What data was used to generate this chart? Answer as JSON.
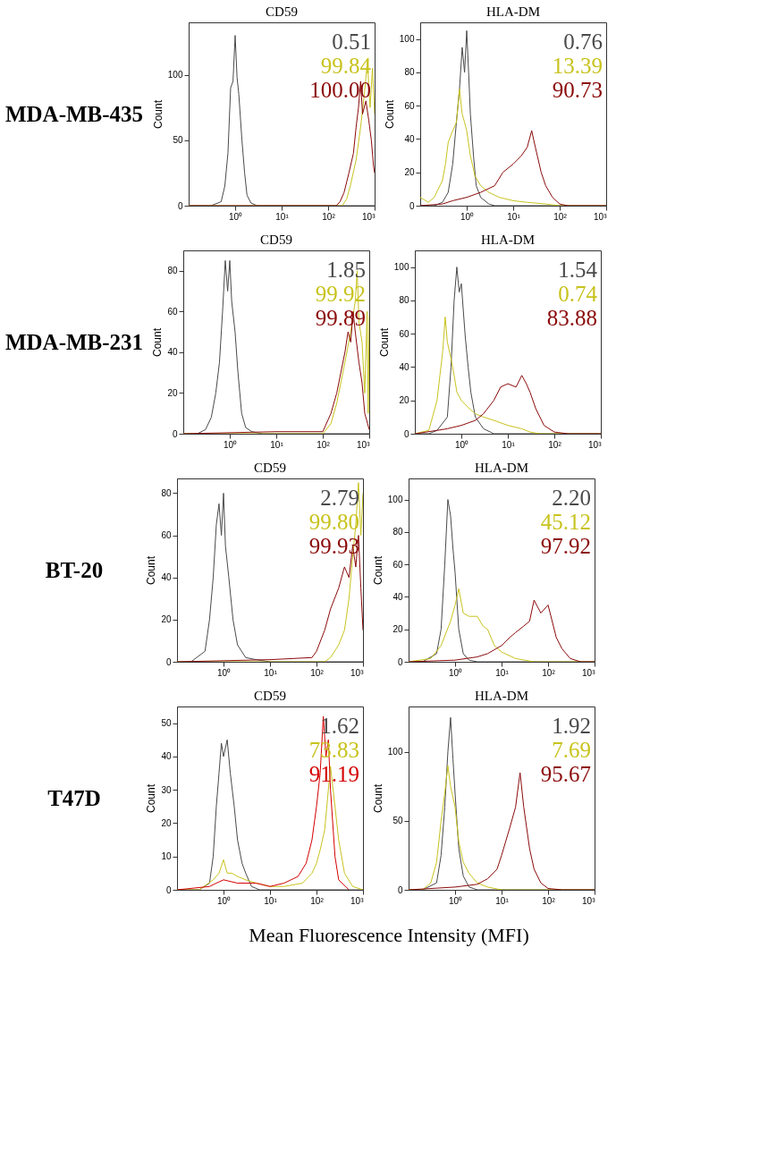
{
  "chart_data": [
    {
      "type": "line",
      "title": "CD59",
      "ylabel": "Count",
      "log": "x",
      "grid": false,
      "legend": "top right",
      "annotations": [
        "MDA-MB-435"
      ],
      "xlim": [
        0.1,
        1000
      ],
      "xticks": [
        {
          "value": 1,
          "label": "10⁰"
        },
        {
          "value": 10,
          "label": "10¹"
        },
        {
          "value": 100,
          "label": "10²"
        },
        {
          "value": 1000,
          "label": "10³"
        }
      ],
      "ylim": [
        0,
        140
      ],
      "yticks": [
        0,
        50,
        100
      ],
      "series": [
        {
          "name": "0.51",
          "color": "#4a4a4a",
          "x": [
            0.1,
            0.3,
            0.5,
            0.6,
            0.7,
            0.8,
            0.9,
            1.0,
            1.1,
            1.2,
            1.4,
            1.6,
            1.8,
            2.2,
            3,
            1000
          ],
          "values": [
            0,
            0,
            3,
            15,
            40,
            90,
            95,
            130,
            98,
            85,
            50,
            25,
            8,
            2,
            0,
            0
          ]
        },
        {
          "name": "99.84",
          "color": "#c8c31e",
          "x": [
            0.1,
            100,
            200,
            250,
            300,
            400,
            500,
            600,
            700,
            800,
            900,
            1000
          ],
          "values": [
            0,
            0,
            0,
            5,
            15,
            35,
            60,
            85,
            110,
            75,
            105,
            70
          ]
        },
        {
          "name": "100.00",
          "color": "#8b0a0a",
          "x": [
            0.1,
            150,
            180,
            220,
            280,
            350,
            400,
            450,
            500,
            550,
            650,
            750,
            850,
            950,
            1000
          ],
          "values": [
            0,
            0,
            3,
            10,
            25,
            40,
            60,
            75,
            95,
            70,
            80,
            65,
            50,
            30,
            25
          ]
        }
      ]
    },
    {
      "type": "line",
      "title": "HLA-DM",
      "ylabel": "Count",
      "log": "x",
      "grid": false,
      "legend": "top right",
      "xlim": [
        0.1,
        1000
      ],
      "xticks": [
        {
          "value": 1,
          "label": "10⁰"
        },
        {
          "value": 10,
          "label": "10¹"
        },
        {
          "value": 100,
          "label": "10²"
        },
        {
          "value": 1000,
          "label": "10³"
        }
      ],
      "ylim": [
        0,
        110
      ],
      "yticks": [
        0,
        20,
        40,
        60,
        80,
        100
      ],
      "series": [
        {
          "name": "0.76",
          "color": "#4a4a4a",
          "x": [
            0.1,
            0.2,
            0.3,
            0.4,
            0.5,
            0.6,
            0.7,
            0.8,
            0.9,
            1.0,
            1.1,
            1.2,
            1.4,
            1.6,
            2,
            3,
            4,
            1000
          ],
          "values": [
            0,
            0,
            2,
            8,
            25,
            50,
            70,
            95,
            80,
            105,
            80,
            55,
            30,
            12,
            5,
            1,
            0,
            0
          ]
        },
        {
          "name": "13.39",
          "color": "#c8c31e",
          "x": [
            0.1,
            0.15,
            0.2,
            0.3,
            0.35,
            0.4,
            0.5,
            0.6,
            0.7,
            0.8,
            0.9,
            1.0,
            1.2,
            1.5,
            2,
            3,
            5,
            10,
            20,
            50,
            100,
            1000
          ],
          "values": [
            5,
            2,
            5,
            15,
            25,
            38,
            45,
            50,
            70,
            55,
            50,
            45,
            30,
            18,
            12,
            8,
            5,
            3,
            2,
            1,
            0,
            0
          ]
        },
        {
          "name": "90.73",
          "color": "#8b0a0a",
          "x": [
            0.1,
            0.3,
            0.5,
            1,
            2,
            4,
            6,
            10,
            15,
            20,
            25,
            30,
            40,
            50,
            70,
            100,
            150,
            1000
          ],
          "values": [
            0,
            1,
            3,
            5,
            8,
            12,
            20,
            25,
            30,
            35,
            45,
            35,
            20,
            12,
            5,
            1,
            0,
            0
          ]
        }
      ]
    },
    {
      "type": "line",
      "title": "CD59",
      "ylabel": "Count",
      "log": "x",
      "grid": false,
      "legend": "top right",
      "annotations": [
        "MDA-MB-231"
      ],
      "xlim": [
        0.1,
        1000
      ],
      "xticks": [
        {
          "value": 1,
          "label": "10⁰"
        },
        {
          "value": 10,
          "label": "10¹"
        },
        {
          "value": 100,
          "label": "10²"
        },
        {
          "value": 1000,
          "label": "10³"
        }
      ],
      "ylim": [
        0,
        90
      ],
      "yticks": [
        0,
        20,
        40,
        60,
        80
      ],
      "series": [
        {
          "name": "1.85",
          "color": "#4a4a4a",
          "x": [
            0.1,
            0.2,
            0.3,
            0.4,
            0.5,
            0.6,
            0.7,
            0.8,
            0.9,
            1.0,
            1.1,
            1.3,
            1.5,
            1.8,
            2.2,
            3,
            5,
            1000
          ],
          "values": [
            0,
            0,
            2,
            8,
            20,
            35,
            60,
            85,
            70,
            85,
            65,
            50,
            30,
            10,
            3,
            1,
            0,
            0
          ]
        },
        {
          "name": "99.92",
          "color": "#c8c31e",
          "x": [
            0.1,
            100,
            150,
            200,
            300,
            400,
            500,
            550,
            600,
            700,
            800,
            900,
            950,
            1000
          ],
          "values": [
            0,
            0,
            5,
            15,
            35,
            50,
            65,
            80,
            55,
            45,
            20,
            60,
            10,
            58
          ]
        },
        {
          "name": "99.89",
          "color": "#8b0a0a",
          "x": [
            0.1,
            10,
            100,
            150,
            200,
            300,
            350,
            400,
            450,
            500,
            600,
            700,
            800,
            1000
          ],
          "values": [
            0,
            1,
            1,
            10,
            20,
            40,
            50,
            45,
            60,
            50,
            35,
            25,
            10,
            2
          ]
        }
      ]
    },
    {
      "type": "line",
      "title": "HLA-DM",
      "ylabel": "Count",
      "log": "x",
      "grid": false,
      "legend": "top right",
      "xlim": [
        0.1,
        1000
      ],
      "xticks": [
        {
          "value": 1,
          "label": "10⁰"
        },
        {
          "value": 10,
          "label": "10¹"
        },
        {
          "value": 100,
          "label": "10²"
        },
        {
          "value": 1000,
          "label": "10³"
        }
      ],
      "ylim": [
        0,
        110
      ],
      "yticks": [
        0,
        20,
        40,
        60,
        80,
        100
      ],
      "series": [
        {
          "name": "1.54",
          "color": "#4a4a4a",
          "x": [
            0.1,
            0.2,
            0.3,
            0.5,
            0.6,
            0.7,
            0.8,
            0.9,
            1.0,
            1.2,
            1.4,
            1.6,
            2,
            3,
            5,
            1000
          ],
          "values": [
            0,
            0,
            2,
            10,
            40,
            80,
            100,
            85,
            90,
            60,
            40,
            25,
            10,
            3,
            0,
            0
          ]
        },
        {
          "name": "0.74",
          "color": "#c8c31e",
          "x": [
            0.1,
            0.2,
            0.3,
            0.4,
            0.45,
            0.5,
            0.6,
            0.7,
            0.8,
            1,
            1.5,
            2,
            3,
            5,
            10,
            20,
            30,
            50,
            1000
          ],
          "values": [
            0,
            2,
            20,
            50,
            70,
            55,
            45,
            35,
            25,
            20,
            15,
            12,
            10,
            8,
            5,
            3,
            1,
            0,
            0
          ]
        },
        {
          "name": "83.88",
          "color": "#8b0a0a",
          "x": [
            0.1,
            0.3,
            0.5,
            1,
            2,
            3,
            5,
            7,
            10,
            15,
            20,
            25,
            30,
            40,
            60,
            100,
            200,
            1000
          ],
          "values": [
            0,
            2,
            3,
            5,
            8,
            12,
            20,
            28,
            30,
            28,
            35,
            30,
            25,
            15,
            5,
            1,
            0,
            0
          ]
        }
      ]
    },
    {
      "type": "line",
      "title": "CD59",
      "ylabel": "Count",
      "log": "x",
      "grid": false,
      "legend": "top right",
      "annotations": [
        "BT-20"
      ],
      "xlim": [
        0.1,
        1000
      ],
      "xticks": [
        {
          "value": 1,
          "label": "10⁰"
        },
        {
          "value": 10,
          "label": "10¹"
        },
        {
          "value": 100,
          "label": "10²"
        },
        {
          "value": 1000,
          "label": "10³"
        }
      ],
      "ylim": [
        0,
        87
      ],
      "yticks": [
        0,
        20,
        40,
        60,
        80
      ],
      "series": [
        {
          "name": "2.79",
          "color": "#4a4a4a",
          "x": [
            0.1,
            0.2,
            0.4,
            0.5,
            0.6,
            0.7,
            0.8,
            0.9,
            1.0,
            1.1,
            1.3,
            1.6,
            2,
            3,
            5,
            10,
            1000
          ],
          "values": [
            0,
            0,
            5,
            20,
            40,
            65,
            75,
            60,
            80,
            55,
            40,
            20,
            8,
            2,
            1,
            0,
            0
          ]
        },
        {
          "name": "99.80",
          "color": "#c8c31e",
          "x": [
            0.1,
            150,
            200,
            300,
            400,
            500,
            600,
            700,
            800,
            900,
            1000
          ],
          "values": [
            0,
            0,
            2,
            8,
            15,
            30,
            50,
            65,
            85,
            60,
            80
          ]
        },
        {
          "name": "99.93",
          "color": "#8b0a0a",
          "x": [
            0.1,
            10,
            80,
            100,
            150,
            200,
            300,
            400,
            500,
            600,
            700,
            800,
            900,
            1000
          ],
          "values": [
            0,
            1,
            2,
            5,
            15,
            25,
            35,
            45,
            40,
            55,
            45,
            60,
            35,
            15
          ]
        }
      ]
    },
    {
      "type": "line",
      "title": "HLA-DM",
      "ylabel": "Count",
      "log": "x",
      "grid": false,
      "legend": "top right",
      "xlim": [
        0.1,
        1000
      ],
      "xticks": [
        {
          "value": 1,
          "label": "10⁰"
        },
        {
          "value": 10,
          "label": "10¹"
        },
        {
          "value": 100,
          "label": "10²"
        },
        {
          "value": 1000,
          "label": "10³"
        }
      ],
      "ylim": [
        0,
        113
      ],
      "yticks": [
        0,
        20,
        40,
        60,
        80,
        100
      ],
      "series": [
        {
          "name": "2.20",
          "color": "#4a4a4a",
          "x": [
            0.1,
            0.2,
            0.4,
            0.5,
            0.6,
            0.7,
            0.8,
            0.9,
            1.0,
            1.2,
            1.5,
            2,
            3,
            1000
          ],
          "values": [
            0,
            0,
            5,
            20,
            60,
            100,
            90,
            70,
            55,
            20,
            5,
            1,
            0,
            0
          ]
        },
        {
          "name": "45.12",
          "color": "#c8c31e",
          "x": [
            0.1,
            0.3,
            0.5,
            0.8,
            1.0,
            1.2,
            1.5,
            2,
            3,
            4,
            5,
            7,
            10,
            20,
            50,
            1000
          ],
          "values": [
            0,
            2,
            10,
            25,
            35,
            45,
            30,
            28,
            28,
            22,
            20,
            10,
            6,
            2,
            0,
            0
          ]
        },
        {
          "name": "97.92",
          "color": "#8b0a0a",
          "x": [
            0.1,
            1,
            3,
            5,
            10,
            15,
            20,
            30,
            40,
            50,
            70,
            100,
            150,
            200,
            300,
            500,
            1000
          ],
          "values": [
            0,
            1,
            3,
            5,
            10,
            15,
            18,
            22,
            25,
            38,
            30,
            35,
            15,
            8,
            2,
            0,
            0
          ]
        }
      ]
    },
    {
      "type": "line",
      "title": "CD59",
      "ylabel": "Count",
      "log": "x",
      "grid": false,
      "legend": "top right",
      "annotations": [
        "T47D"
      ],
      "xlim": [
        0.1,
        1000
      ],
      "xticks": [
        {
          "value": 1,
          "label": "10⁰"
        },
        {
          "value": 10,
          "label": "10¹"
        },
        {
          "value": 100,
          "label": "10²"
        },
        {
          "value": 1000,
          "label": "10³"
        }
      ],
      "ylim": [
        0,
        55
      ],
      "yticks": [
        0,
        10,
        20,
        30,
        40,
        50
      ],
      "series": [
        {
          "name": "1.62",
          "color": "#4a4a4a",
          "x": [
            0.1,
            0.3,
            0.5,
            0.6,
            0.7,
            0.8,
            0.9,
            1.0,
            1.2,
            1.4,
            1.7,
            2,
            2.5,
            3,
            4,
            6,
            1000
          ],
          "values": [
            0,
            0,
            2,
            10,
            25,
            35,
            44,
            40,
            45,
            35,
            25,
            15,
            8,
            5,
            1,
            0,
            0
          ]
        },
        {
          "name": "73.83",
          "color": "#c8c31e",
          "x": [
            0.1,
            0.3,
            0.6,
            0.8,
            1,
            1.2,
            1.5,
            2,
            3,
            5,
            10,
            20,
            50,
            80,
            100,
            120,
            150,
            200,
            250,
            300,
            400,
            600,
            1000
          ],
          "values": [
            0,
            0,
            3,
            5,
            9,
            5,
            5,
            4,
            3,
            2,
            1,
            1,
            2,
            5,
            8,
            12,
            18,
            37,
            25,
            15,
            5,
            1,
            0
          ]
        },
        {
          "name": "91.19",
          "color": "#d40000",
          "x": [
            0.1,
            0.5,
            0.7,
            1,
            2,
            5,
            10,
            20,
            40,
            60,
            80,
            100,
            120,
            140,
            160,
            180,
            200,
            250,
            300,
            500
          ],
          "values": [
            0,
            1,
            2,
            3,
            2,
            2,
            1,
            2,
            4,
            8,
            15,
            25,
            35,
            52,
            40,
            45,
            30,
            10,
            3,
            0
          ]
        }
      ]
    },
    {
      "type": "line",
      "title": "HLA-DM",
      "ylabel": "Count",
      "log": "x",
      "grid": false,
      "legend": "top right",
      "annotations": [
        "Mean Fluorescence Intensity (MFI)"
      ],
      "xlim": [
        0.1,
        1000
      ],
      "xticks": [
        {
          "value": 1,
          "label": "10⁰"
        },
        {
          "value": 10,
          "label": "10¹"
        },
        {
          "value": 100,
          "label": "10²"
        },
        {
          "value": 1000,
          "label": "10³"
        }
      ],
      "ylim": [
        0,
        133
      ],
      "yticks": [
        0,
        50,
        100
      ],
      "series": [
        {
          "name": "1.92",
          "color": "#4a4a4a",
          "x": [
            0.1,
            0.2,
            0.4,
            0.5,
            0.6,
            0.7,
            0.8,
            0.9,
            1.0,
            1.2,
            1.5,
            2,
            3,
            1000
          ],
          "values": [
            0,
            0,
            5,
            25,
            60,
            100,
            125,
            95,
            70,
            30,
            10,
            2,
            0,
            0
          ]
        },
        {
          "name": "7.69",
          "color": "#c8c31e",
          "x": [
            0.1,
            0.2,
            0.3,
            0.4,
            0.5,
            0.6,
            0.7,
            0.8,
            1.0,
            1.2,
            1.5,
            2,
            3,
            5,
            10,
            1000
          ],
          "values": [
            0,
            0,
            5,
            20,
            50,
            70,
            90,
            75,
            60,
            35,
            20,
            12,
            5,
            2,
            0,
            0
          ]
        },
        {
          "name": "95.67",
          "color": "#8b0a0a",
          "x": [
            0.1,
            1,
            3,
            5,
            8,
            10,
            15,
            20,
            25,
            30,
            40,
            50,
            70,
            100,
            200,
            1000
          ],
          "values": [
            0,
            2,
            4,
            8,
            15,
            25,
            45,
            60,
            85,
            60,
            30,
            15,
            5,
            1,
            0,
            0
          ]
        }
      ]
    }
  ]
}
